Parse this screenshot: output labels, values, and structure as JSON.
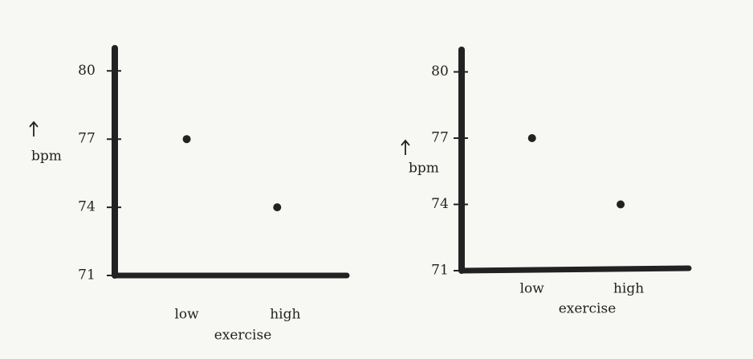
{
  "chart_data": [
    {
      "type": "scatter",
      "categories": [
        "low",
        "high"
      ],
      "values": [
        77,
        74
      ],
      "xlabel": "exercise",
      "ylabel": "bpm",
      "color": "#222222",
      "ylim": [
        71,
        81
      ],
      "yticks": [
        71,
        74,
        77,
        80
      ]
    },
    {
      "type": "scatter",
      "categories": [
        "low",
        "high"
      ],
      "values": [
        77,
        74
      ],
      "xlabel": "exercise",
      "ylabel": "bpm",
      "color": "#222222",
      "ylim": [
        71,
        81
      ],
      "yticks": [
        71,
        74,
        77,
        80
      ]
    }
  ]
}
